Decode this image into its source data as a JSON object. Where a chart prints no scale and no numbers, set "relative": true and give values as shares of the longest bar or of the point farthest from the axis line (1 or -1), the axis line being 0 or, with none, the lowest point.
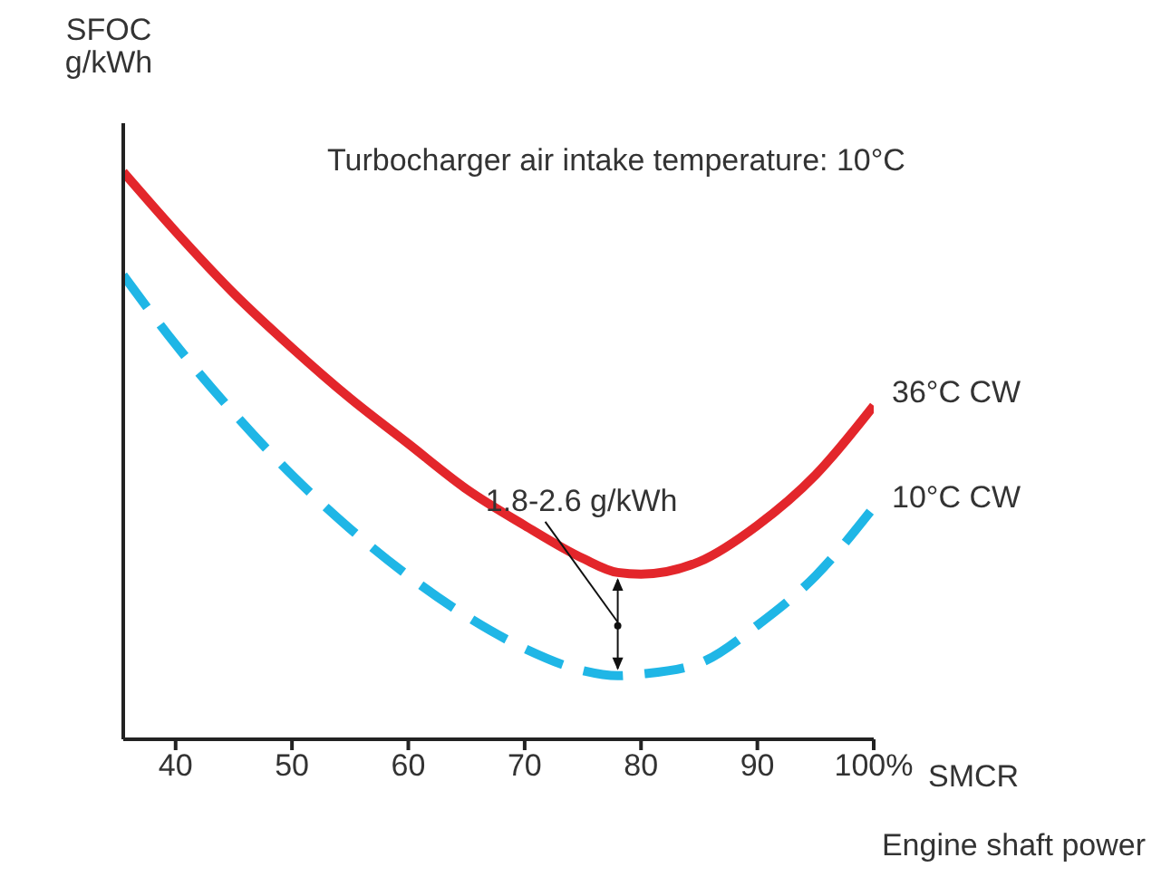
{
  "chart_data": {
    "type": "line",
    "relative": true,
    "ylabel": "SFOC\ng/kWh",
    "xlabel": "Engine shaft power",
    "annotations": [
      "Turbocharger air intake temperature: 10°C",
      "SMCR",
      {
        "text": "1.8-2.6 g/kWh",
        "x": 78,
        "y": 0.2
      }
    ],
    "x": [
      35.5,
      40,
      45,
      50,
      55,
      60,
      65,
      70,
      75,
      78,
      80,
      85,
      90,
      95,
      100
    ],
    "xlim": [
      35.5,
      100
    ],
    "xticks": [
      40,
      50,
      60,
      70,
      80,
      90,
      {
        "value": 100,
        "label": "100%"
      }
    ],
    "marker": "none",
    "series": [
      {
        "name": "36°C CW",
        "color": "#e3262b",
        "line_style": "solid",
        "values": [
          1.0,
          0.895,
          0.786,
          0.69,
          0.601,
          0.521,
          0.441,
          0.377,
          0.319,
          0.294,
          0.291,
          0.313,
          0.377,
          0.466,
          0.588
        ]
      },
      {
        "name": "10°C CW",
        "color": "#1fb6e6",
        "line_style": "dashed",
        "values": [
          0.818,
          0.696,
          0.575,
          0.466,
          0.371,
          0.288,
          0.217,
          0.16,
          0.121,
          0.112,
          0.115,
          0.134,
          0.201,
          0.288,
          0.409
        ]
      }
    ]
  }
}
